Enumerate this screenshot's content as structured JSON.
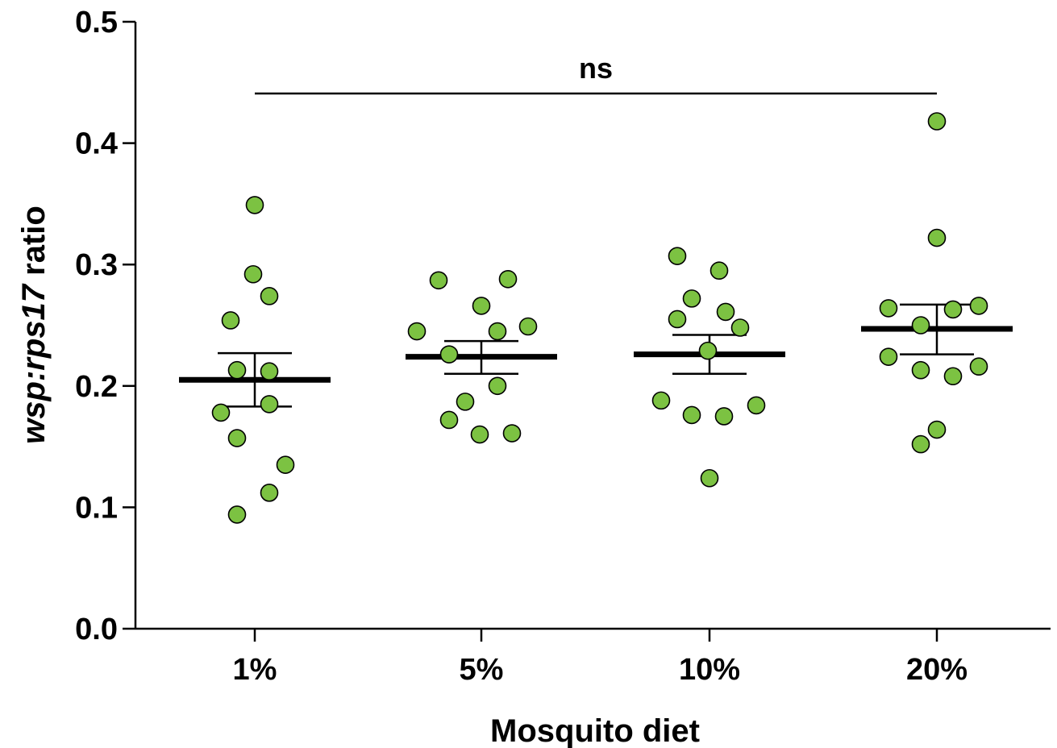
{
  "chart_data": {
    "type": "scatter",
    "xlabel": "Mosquito diet",
    "ylabel_parts": [
      {
        "text": "wsp:rps17",
        "italic": true
      },
      {
        "text": " ratio",
        "italic": false
      }
    ],
    "ylim": [
      0,
      0.5
    ],
    "yticks": [
      "0.0",
      "0.1",
      "0.2",
      "0.3",
      "0.4",
      "0.5"
    ],
    "categories": [
      "1%",
      "5%",
      "10%",
      "20%"
    ],
    "groups": [
      {
        "category": "1%",
        "points": [
          0.349,
          0.292,
          0.274,
          0.254,
          0.213,
          0.212,
          0.185,
          0.178,
          0.157,
          0.135,
          0.112,
          0.094
        ],
        "mean": 0.205,
        "sem_low": 0.183,
        "sem_high": 0.227
      },
      {
        "category": "5%",
        "points": [
          0.287,
          0.288,
          0.266,
          0.249,
          0.245,
          0.245,
          0.226,
          0.2,
          0.187,
          0.172,
          0.16,
          0.161
        ],
        "mean": 0.224,
        "sem_low": 0.21,
        "sem_high": 0.237
      },
      {
        "category": "10%",
        "points": [
          0.307,
          0.295,
          0.272,
          0.261,
          0.255,
          0.248,
          0.229,
          0.188,
          0.184,
          0.176,
          0.175,
          0.124
        ],
        "mean": 0.226,
        "sem_low": 0.21,
        "sem_high": 0.242
      },
      {
        "category": "20%",
        "points": [
          0.418,
          0.322,
          0.266,
          0.264,
          0.263,
          0.25,
          0.224,
          0.216,
          0.213,
          0.208,
          0.164,
          0.152
        ],
        "mean": 0.247,
        "sem_low": 0.226,
        "sem_high": 0.267
      }
    ],
    "significance": {
      "label": "ns",
      "from": "1%",
      "to": "20%"
    },
    "colors": {
      "point_fill": "#7cc242",
      "point_stroke": "#000000",
      "line": "#000000"
    }
  }
}
